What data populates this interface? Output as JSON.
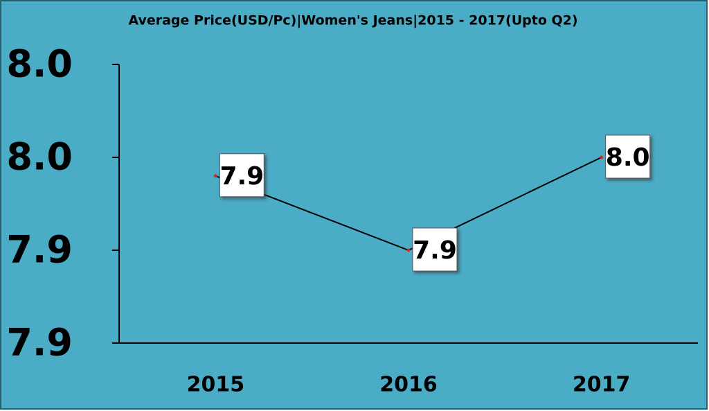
{
  "chart_data": {
    "type": "line",
    "title": "Average Price(USD/Pc)|Women's Jeans|2015 - 2017(Upto Q2)",
    "categories": [
      "2015",
      "2016",
      "2017"
    ],
    "series": [
      {
        "color": "#000000",
        "marker_color": "#e02020",
        "values": [
          7.94,
          7.9,
          7.95
        ],
        "value_labels": [
          "7.9",
          "7.9",
          "8.0"
        ]
      }
    ],
    "ylim": [
      7.85,
      8.0
    ],
    "yticks": [
      {
        "value": 7.85,
        "label": "7.9"
      },
      {
        "value": 7.9,
        "label": "7.9"
      },
      {
        "value": 7.95,
        "label": "8.0"
      },
      {
        "value": 8.0,
        "label": "8.0"
      }
    ],
    "grid": false
  }
}
